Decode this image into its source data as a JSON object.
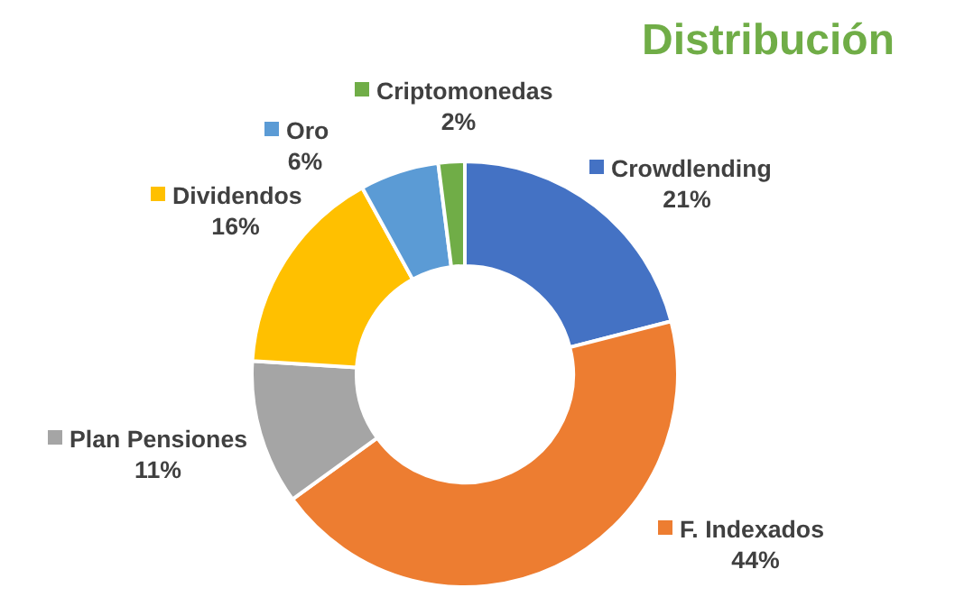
{
  "chart_data": {
    "type": "donut",
    "title": "Distribución",
    "categories": [
      "Crowdlending",
      "F. Indexados",
      "Plan Pensiones",
      "Dividendos",
      "Oro",
      "Criptomonedas"
    ],
    "values": [
      21,
      44,
      11,
      16,
      6,
      2
    ],
    "value_labels": [
      "21%",
      "44%",
      "11%",
      "16%",
      "6%",
      "2%"
    ],
    "colors": [
      "#4472c4",
      "#ed7d31",
      "#a5a5a5",
      "#ffc000",
      "#5b9bd5",
      "#70ad47"
    ],
    "legend": "top left"
  }
}
